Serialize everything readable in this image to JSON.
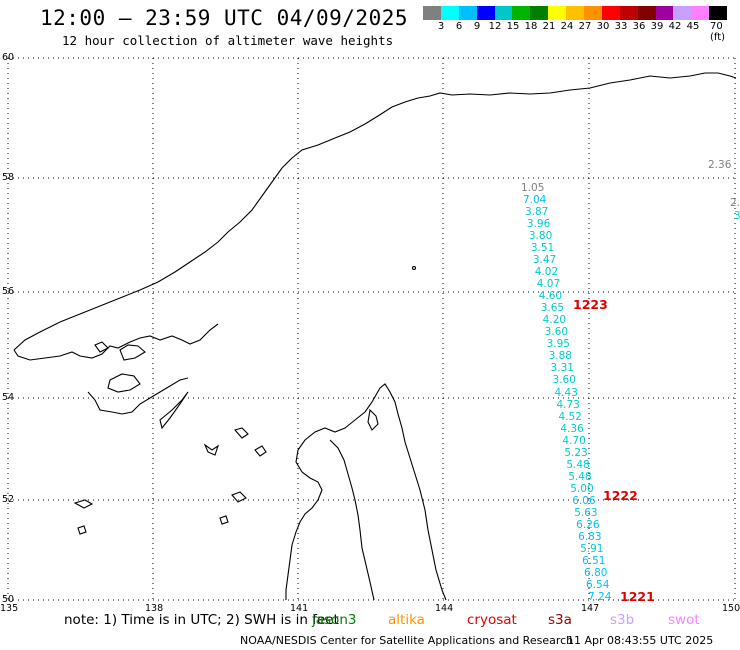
{
  "header": {
    "title": "12:00 — 23:59 UTC 04/09/2025",
    "subtitle": "12 hour collection of altimeter wave heights"
  },
  "legend": {
    "colors": [
      "#808080",
      "#00ffff",
      "#00bfff",
      "#0000ff",
      "#00c8c8",
      "#00b400",
      "#008000",
      "#ffff00",
      "#ffc000",
      "#ff9000",
      "#ff0000",
      "#c00000",
      "#800000",
      "#a000a0",
      "#c8a0ff",
      "#ff80ff",
      "#000000"
    ],
    "tick_labels": [
      "3",
      "6",
      "9",
      "12",
      "15",
      "18",
      "21",
      "24",
      "27",
      "30",
      "33",
      "36",
      "39",
      "42",
      "45",
      "70 (ft)"
    ]
  },
  "axes": {
    "x_labels": [
      "135",
      "138",
      "141",
      "144",
      "147",
      "150"
    ],
    "y_labels": [
      "60",
      "58",
      "56",
      "54",
      "52",
      "50"
    ]
  },
  "observations": {
    "values_col1": [
      {
        "v": "1.05",
        "c": "#808080"
      },
      {
        "v": "7.04",
        "c": "#00bfff"
      },
      {
        "v": "3.87",
        "c": "#00cccc"
      },
      {
        "v": "3.96",
        "c": "#00cccc"
      },
      {
        "v": "3.80",
        "c": "#00cccc"
      },
      {
        "v": "3.51",
        "c": "#00cccc"
      },
      {
        "v": "3.47",
        "c": "#00cccc"
      },
      {
        "v": "4.02",
        "c": "#00cccc"
      },
      {
        "v": "4.07",
        "c": "#00cccc"
      },
      {
        "v": "4.60",
        "c": "#00cccc"
      },
      {
        "v": "3.65",
        "c": "#00cccc"
      },
      {
        "v": "4.20",
        "c": "#00cccc"
      },
      {
        "v": "3.60",
        "c": "#00cccc"
      },
      {
        "v": "3.95",
        "c": "#00cccc"
      },
      {
        "v": "3.88",
        "c": "#00cccc"
      },
      {
        "v": "3.31",
        "c": "#00cccc"
      },
      {
        "v": "3.60",
        "c": "#00cccc"
      },
      {
        "v": "4.43",
        "c": "#00cccc"
      },
      {
        "v": "4.73",
        "c": "#00cccc"
      },
      {
        "v": "4.52",
        "c": "#00cccc"
      },
      {
        "v": "4.36",
        "c": "#00cccc"
      },
      {
        "v": "4.70",
        "c": "#00cccc"
      },
      {
        "v": "5.23",
        "c": "#00cccc"
      },
      {
        "v": "5.48",
        "c": "#00cccc"
      },
      {
        "v": "5.48",
        "c": "#00cccc"
      },
      {
        "v": "5.00",
        "c": "#00cccc"
      },
      {
        "v": "6.06",
        "c": "#00bfff"
      },
      {
        "v": "5.63",
        "c": "#00cccc"
      },
      {
        "v": "6.26",
        "c": "#00bfff"
      },
      {
        "v": "6.83",
        "c": "#00bfff"
      },
      {
        "v": "5.91",
        "c": "#00cccc"
      },
      {
        "v": "6.51",
        "c": "#00bfff"
      },
      {
        "v": "6.80",
        "c": "#00bfff"
      },
      {
        "v": "6.54",
        "c": "#00bfff"
      },
      {
        "v": "7.24",
        "c": "#00bfff"
      }
    ],
    "edge_values": [
      {
        "v": "2.36",
        "c": "#808080"
      },
      {
        "v": "2.",
        "c": "#808080"
      },
      {
        "v": "3",
        "c": "#00cccc"
      }
    ],
    "pass_ids": [
      "1223",
      "1222",
      "1221"
    ]
  },
  "footer": {
    "note": "note: 1) Time is in UTC; 2) SWH is in feet",
    "satellites": [
      {
        "name": "jason3",
        "color": "#008000"
      },
      {
        "name": "altika",
        "color": "#ff9000"
      },
      {
        "name": "cryosat",
        "color": "#e00000"
      },
      {
        "name": "s3a",
        "color": "#a00000"
      },
      {
        "name": "s3b",
        "color": "#c8a0ff"
      },
      {
        "name": "swot",
        "color": "#ff80ff"
      }
    ],
    "credit": "NOAA/NESDIS Center for Satellite Applications and Research",
    "timestamp": "11 Apr 08:43:55 UTC 2025"
  }
}
